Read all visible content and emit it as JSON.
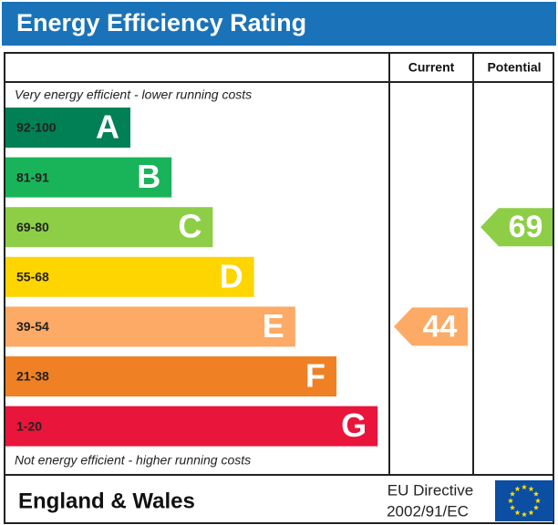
{
  "title": "Energy Efficiency Rating",
  "columns": {
    "current": "Current",
    "potential": "Potential"
  },
  "top_note": "Very energy efficient - lower running costs",
  "bottom_note": "Not energy efficient - higher running costs",
  "bands": [
    {
      "range": "92-100",
      "letter": "A",
      "color": "#008054"
    },
    {
      "range": "81-91",
      "letter": "B",
      "color": "#19b459"
    },
    {
      "range": "69-80",
      "letter": "C",
      "color": "#8dce46"
    },
    {
      "range": "55-68",
      "letter": "D",
      "color": "#ffd500"
    },
    {
      "range": "39-54",
      "letter": "E",
      "color": "#fcaa65"
    },
    {
      "range": "21-38",
      "letter": "F",
      "color": "#ef8023"
    },
    {
      "range": "1-20",
      "letter": "G",
      "color": "#e9153b"
    }
  ],
  "current": 44,
  "potential": 69,
  "footer": {
    "region": "England & Wales",
    "directive_line1": "EU Directive",
    "directive_line2": "2002/91/EC"
  }
}
